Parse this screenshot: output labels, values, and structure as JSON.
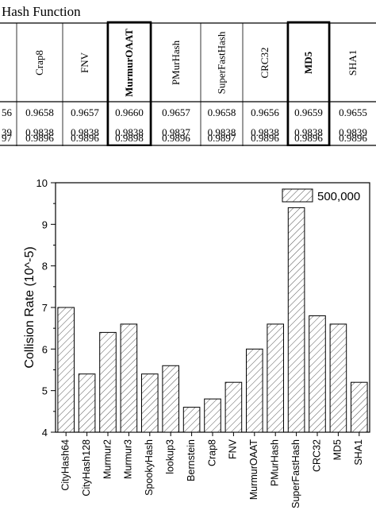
{
  "table": {
    "title": "Hash Function",
    "columns": [
      {
        "label": "",
        "bold": false
      },
      {
        "label": "Crap8",
        "bold": false
      },
      {
        "label": "FNV",
        "bold": false
      },
      {
        "label": "MurmurOAAT",
        "bold": true
      },
      {
        "label": "PMurHash",
        "bold": false
      },
      {
        "label": "SuperFastHash",
        "bold": false
      },
      {
        "label": "CRC32",
        "bold": false
      },
      {
        "label": "MD5",
        "bold": true
      },
      {
        "label": "SHA1",
        "bold": false
      }
    ],
    "rows": [
      [
        "56",
        "0.9658",
        "0.9657",
        "0.9660",
        "0.9657",
        "0.9658",
        "0.9656",
        "0.9659",
        "0.9655"
      ],
      [
        "39",
        "0.9838",
        "0.9838",
        "0.9838",
        "0.9837",
        "0.9838",
        "0.9838",
        "0.9838",
        "0.9839"
      ],
      [
        "97",
        "0.9896",
        "0.9896",
        "0.9898",
        "0.9896",
        "0.9897",
        "0.9896",
        "0.9896",
        "0.9896"
      ]
    ],
    "highlighted_columns": [
      3,
      7
    ]
  },
  "chart_data": {
    "type": "bar",
    "categories": [
      "CityHash64",
      "CityHash128",
      "Murmur2",
      "Murmur3",
      "SpookyHash",
      "lookup3",
      "Bernstein",
      "Crap8",
      "FNV",
      "MurmurOAAT",
      "PMurHash",
      "SuperFastHash",
      "CRC32",
      "MD5",
      "SHA1"
    ],
    "series": [
      {
        "name": "500,000",
        "values": [
          7.0,
          5.4,
          6.4,
          6.6,
          5.4,
          5.6,
          4.6,
          4.8,
          5.2,
          6.0,
          6.6,
          9.4,
          6.8,
          6.6,
          5.2
        ]
      }
    ],
    "xlabel": "",
    "ylabel": "Collision Rate (10^-5)",
    "ylim": [
      4,
      10
    ],
    "yticks": [
      4,
      5,
      6,
      7,
      8,
      9,
      10
    ],
    "grid": false,
    "legend": "top-right",
    "bar_pattern": "diagonal-hatch"
  }
}
